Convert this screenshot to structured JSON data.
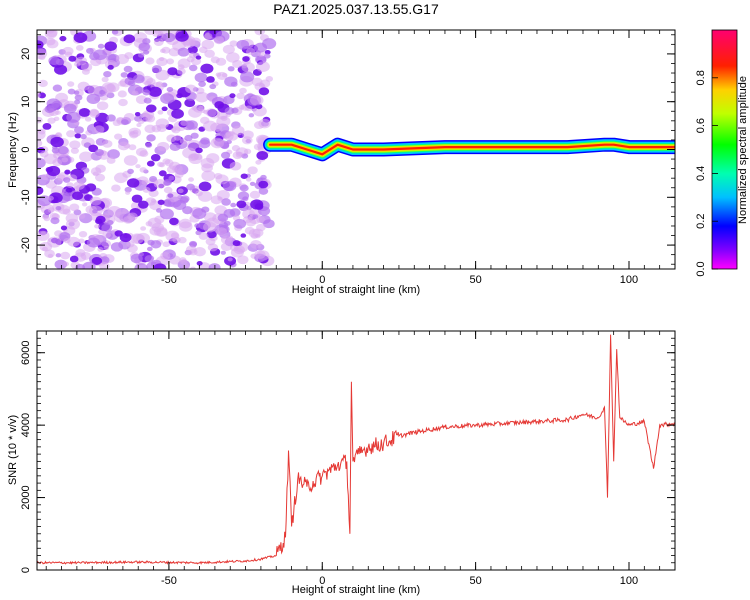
{
  "title": "PAZ1.2025.037.13.55.G17",
  "chart_data": [
    {
      "type": "heatmap",
      "xlabel": "Height of straight line (km)",
      "ylabel": "Frequency (Hz)",
      "xlim": [
        -93,
        115
      ],
      "ylim": [
        -25,
        25
      ],
      "x_ticks": [
        -50,
        0,
        50,
        100
      ],
      "y_ticks": [
        -20,
        -10,
        0,
        10,
        20
      ],
      "colorbar": {
        "label": "Normalized spectral amplitude",
        "range": [
          0,
          1
        ],
        "ticks": [
          "0.0",
          "0.2",
          "0.4",
          "0.6",
          "0.8"
        ],
        "colormap": "rainbow (magenta-blue-cyan-green-yellow-red-magenta)"
      },
      "features": {
        "noise_region_x": [
          -93,
          -17
        ],
        "carrier_line": {
          "x": [
            -17,
            -10,
            -5,
            0,
            5,
            10,
            20,
            40,
            60,
            80,
            92,
            95,
            100,
            115
          ],
          "frequency": [
            1,
            1,
            0,
            -1,
            1,
            0,
            0,
            0.5,
            0.5,
            0.5,
            1,
            1,
            0.5,
            0.5
          ]
        }
      }
    },
    {
      "type": "line",
      "xlabel": "Height of straight line (km)",
      "ylabel": "SNR (10 * v/v)",
      "xlim": [
        -93,
        115
      ],
      "ylim": [
        0,
        6600
      ],
      "x_ticks": [
        -50,
        0,
        50,
        100
      ],
      "y_ticks": [
        0,
        2000,
        4000,
        6000
      ],
      "series": [
        {
          "color": "#e53935",
          "x": [
            -93,
            -80,
            -60,
            -40,
            -25,
            -20,
            -15,
            -12,
            -11,
            -10,
            -8,
            -5,
            0,
            5,
            8,
            9,
            9.5,
            10,
            12,
            15,
            20,
            25,
            30,
            40,
            50,
            60,
            70,
            80,
            85,
            90,
            92,
            93,
            94,
            95,
            96,
            97,
            100,
            105,
            108,
            110,
            115
          ],
          "y": [
            200,
            200,
            220,
            200,
            250,
            300,
            400,
            900,
            3300,
            1200,
            2500,
            2300,
            2600,
            2900,
            3000,
            1000,
            5200,
            3000,
            3200,
            3400,
            3500,
            3700,
            3800,
            3950,
            4000,
            4050,
            4100,
            4150,
            4300,
            4200,
            4500,
            2000,
            6500,
            3000,
            6100,
            4200,
            4000,
            4100,
            2800,
            4000,
            4050
          ]
        }
      ]
    }
  ]
}
